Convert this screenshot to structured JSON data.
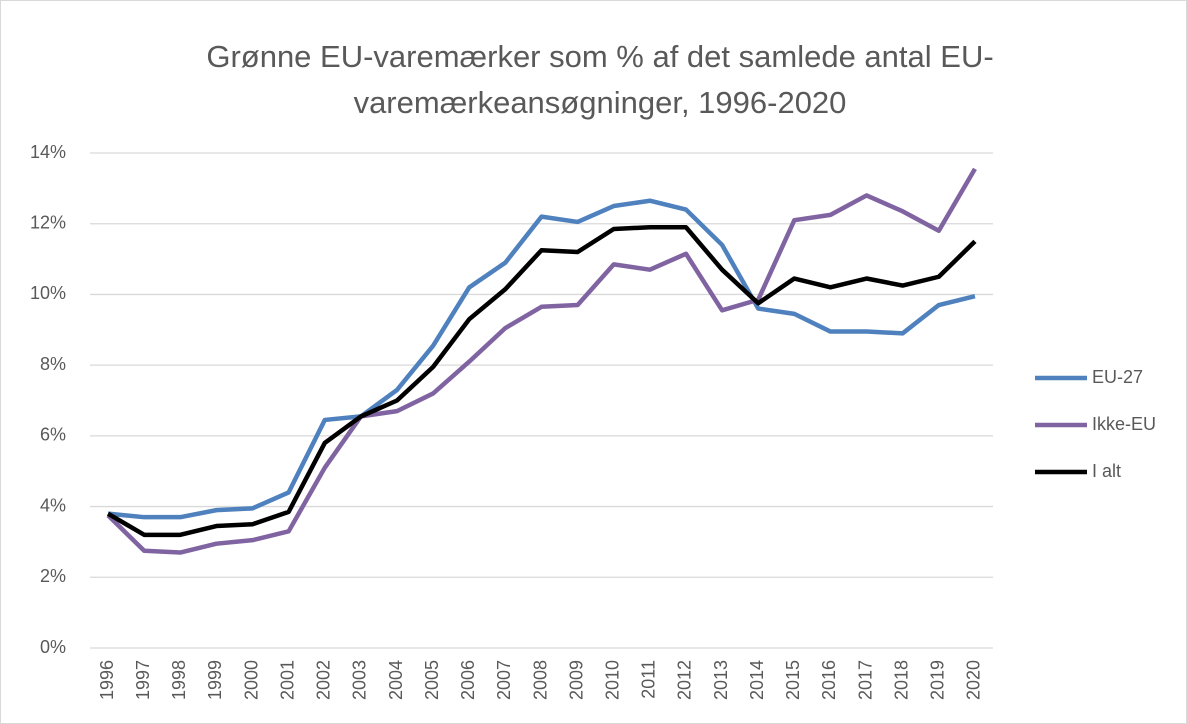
{
  "chart_data": {
    "type": "line",
    "title": "Grønne EU-varemærker som % af det samlede antal EU-varemærkeansøgninger, 1996-2020",
    "categories": [
      "1996",
      "1997",
      "1998",
      "1999",
      "2000",
      "2001",
      "2002",
      "2003",
      "2004",
      "2005",
      "2006",
      "2007",
      "2008",
      "2009",
      "2010",
      "2011",
      "2012",
      "2013",
      "2014",
      "2015",
      "2016",
      "2017",
      "2018",
      "2019",
      "2020"
    ],
    "series": [
      {
        "name": "EU-27",
        "color": "#4e81bd",
        "values": [
          3.8,
          3.7,
          3.7,
          3.9,
          3.95,
          4.4,
          6.45,
          6.55,
          7.3,
          8.55,
          10.2,
          10.9,
          12.2,
          12.05,
          12.5,
          12.65,
          12.4,
          11.4,
          9.6,
          9.45,
          8.95,
          8.95,
          8.9,
          9.7,
          9.95
        ]
      },
      {
        "name": "Ikke-EU",
        "color": "#8064a2",
        "values": [
          3.75,
          2.75,
          2.7,
          2.95,
          3.05,
          3.3,
          5.1,
          6.55,
          6.7,
          7.2,
          8.1,
          9.05,
          9.65,
          9.7,
          10.85,
          10.7,
          11.15,
          9.55,
          9.85,
          12.1,
          12.25,
          12.8,
          12.35,
          11.8,
          13.55
        ]
      },
      {
        "name": "I alt",
        "color": "#000000",
        "values": [
          3.8,
          3.2,
          3.2,
          3.45,
          3.5,
          3.85,
          5.8,
          6.55,
          7.0,
          7.95,
          9.3,
          10.15,
          11.25,
          11.2,
          11.85,
          11.9,
          11.9,
          10.7,
          9.75,
          10.45,
          10.2,
          10.45,
          10.25,
          10.5,
          11.5
        ]
      }
    ],
    "ylim": [
      0,
      14
    ],
    "yticks": [
      {
        "value": 0,
        "label": "0%"
      },
      {
        "value": 2,
        "label": "2%"
      },
      {
        "value": 4,
        "label": "4%"
      },
      {
        "value": 6,
        "label": "6%"
      },
      {
        "value": 8,
        "label": "8%"
      },
      {
        "value": 10,
        "label": "10%"
      },
      {
        "value": 12,
        "label": "12%"
      },
      {
        "value": 14,
        "label": "14%"
      }
    ],
    "grid": true,
    "legend": "right"
  }
}
